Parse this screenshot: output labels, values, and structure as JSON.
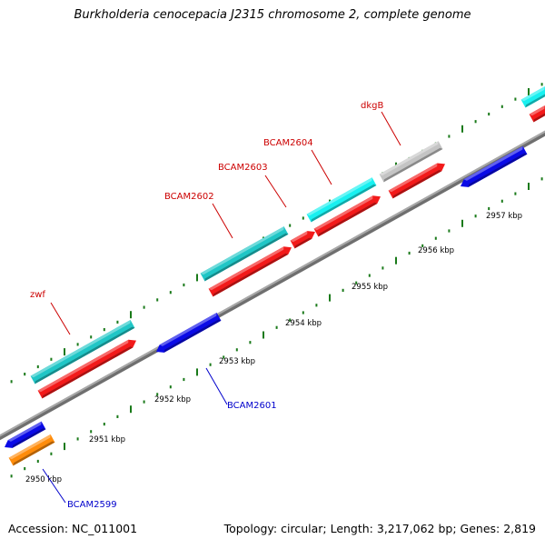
{
  "title": "Burkholderia cenocepacia J2315 chromosome 2, complete genome",
  "footer": {
    "accession": "Accession: NC_011001",
    "summary": "Topology: circular; Length: 3,217,062 bp; Genes: 2,819"
  },
  "colors": {
    "red": "#f21a1a",
    "teal": "#20c6c6",
    "cyan": "#18f0f0",
    "blue": "#0a0ae6",
    "orange": "#ff8c0a",
    "gray": "#c4c4c4",
    "backbone": "#8c8c8c",
    "tick": "#1a7a1a",
    "gene_label_red": "#cc0000",
    "gene_label_blue": "#0000cc"
  },
  "scale": {
    "unit": "kbp",
    "ticks": [
      {
        "value": 2950,
        "label": "2950 kbp"
      },
      {
        "value": 2951,
        "label": "2951 kbp"
      },
      {
        "value": 2952,
        "label": "2952 kbp"
      },
      {
        "value": 2953,
        "label": "2953 kbp"
      },
      {
        "value": 2954,
        "label": "2954 kbp"
      },
      {
        "value": 2955,
        "label": "2955 kbp"
      },
      {
        "value": 2956,
        "label": "2956 kbp"
      },
      {
        "value": 2957,
        "label": "2957 kbp"
      }
    ]
  },
  "gene_labels": [
    {
      "name": "zwf",
      "color_key": "gene_label_red"
    },
    {
      "name": "BCAM2602",
      "color_key": "gene_label_red"
    },
    {
      "name": "BCAM2603",
      "color_key": "gene_label_red"
    },
    {
      "name": "BCAM2604",
      "color_key": "gene_label_red"
    },
    {
      "name": "dkgB",
      "color_key": "gene_label_red"
    },
    {
      "name": "BCAM2601",
      "color_key": "gene_label_blue"
    },
    {
      "name": "BCAM2599",
      "color_key": "gene_label_blue"
    }
  ]
}
